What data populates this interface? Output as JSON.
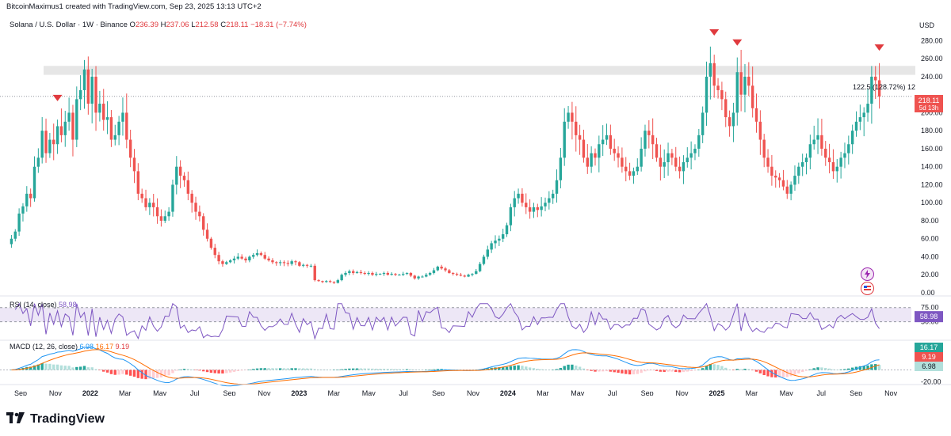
{
  "header": {
    "credit": "BitcoinMaximus1 created with TradingView.com, Sep 23, 2025 13:13 UTC+2"
  },
  "symbol": {
    "name": "Solana / U.S. Dollar · 1W · Binance",
    "o_label": "O",
    "o": "236.39",
    "h_label": "H",
    "h": "237.06",
    "l_label": "L",
    "l": "212.58",
    "c_label": "C",
    "c": "218.11",
    "change": "−18.31 (−7.74%)"
  },
  "currency": "USD",
  "price_label": {
    "value": "218.11",
    "countdown": "5d 13h"
  },
  "measure_label": "122.5 (128.72%) 12",
  "rsi": {
    "label": "RSI (14, close)",
    "value": "58.98",
    "ticks": [
      "75.00",
      "50.00"
    ],
    "badge": "58.98"
  },
  "macd": {
    "label": "MACD (12, 26, close)",
    "v1": "6.98",
    "v2": "16.17",
    "v3": "9.19",
    "badges": [
      "16.17",
      "9.19",
      "6.98"
    ],
    "ticks": [
      "-20.00"
    ]
  },
  "x_axis": [
    "Sep",
    "Nov",
    "2022",
    "Mar",
    "May",
    "Jul",
    "Sep",
    "Nov",
    "2023",
    "Mar",
    "May",
    "Jul",
    "Sep",
    "Nov",
    "2024",
    "Mar",
    "May",
    "Jul",
    "Sep",
    "Nov",
    "2025",
    "Mar",
    "May",
    "Jul",
    "Sep",
    "Nov"
  ],
  "footer": {
    "brand": "TradingView"
  },
  "colors": {
    "up": "#26a69a",
    "down": "#ef5350",
    "rsi": "#7e57c2",
    "macd": "#2196f3",
    "signal": "#ff6d00",
    "resistance": "#e0e0e0",
    "marker": "#e03a3e"
  },
  "chart_data": {
    "type": "candlestick",
    "title": "Solana / U.S. Dollar · 1W · Binance",
    "ylabel": "USD",
    "ylim": [
      0,
      290
    ],
    "y_ticks": [
      0,
      20,
      40,
      60,
      80,
      100,
      120,
      140,
      160,
      180,
      200,
      240,
      260,
      280
    ],
    "resistance_zone": [
      242,
      252
    ],
    "last_close": 218.11,
    "peak_markers": [
      "Nov 2021",
      "Nov 2024",
      "Jan 2025",
      "Sep 2025"
    ],
    "closes_weekly": [
      60,
      68,
      88,
      96,
      110,
      105,
      140,
      150,
      180,
      155,
      170,
      165,
      185,
      175,
      190,
      200,
      170,
      215,
      225,
      248,
      210,
      240,
      200,
      210,
      192,
      195,
      170,
      175,
      190,
      200,
      170,
      150,
      135,
      110,
      105,
      95,
      100,
      95,
      85,
      80,
      85,
      90,
      120,
      140,
      130,
      125,
      110,
      100,
      90,
      85,
      70,
      60,
      50,
      42,
      35,
      32,
      34,
      36,
      38,
      40,
      38,
      36,
      40,
      42,
      44,
      42,
      38,
      36,
      34,
      33,
      34,
      33,
      32,
      35,
      34,
      30,
      31,
      30,
      30,
      14,
      13,
      12,
      13,
      12,
      11,
      14,
      20,
      22,
      24,
      22,
      23,
      22,
      21,
      22,
      20,
      21,
      21,
      22,
      20,
      21,
      20,
      20,
      21,
      22,
      19,
      16,
      18,
      18,
      20,
      22,
      25,
      29,
      27,
      25,
      22,
      21,
      20,
      19,
      18,
      20,
      21,
      24,
      32,
      40,
      48,
      55,
      58,
      60,
      65,
      75,
      95,
      105,
      110,
      100,
      95,
      90,
      95,
      92,
      96,
      100,
      105,
      110,
      125,
      150,
      190,
      200,
      190,
      175,
      170,
      150,
      140,
      155,
      150,
      165,
      170,
      175,
      160,
      155,
      150,
      140,
      135,
      130,
      135,
      140,
      160,
      180,
      175,
      165,
      150,
      140,
      145,
      155,
      150,
      140,
      135,
      145,
      150,
      155,
      160,
      175,
      200,
      240,
      255,
      230,
      225,
      215,
      195,
      185,
      200,
      245,
      220,
      240,
      230,
      205,
      190,
      170,
      150,
      140,
      130,
      128,
      125,
      118,
      110,
      120,
      130,
      140,
      145,
      150,
      165,
      170,
      175,
      160,
      150,
      145,
      135,
      140,
      150,
      155,
      165,
      180,
      190,
      195,
      200,
      210,
      240,
      236,
      218
    ]
  }
}
